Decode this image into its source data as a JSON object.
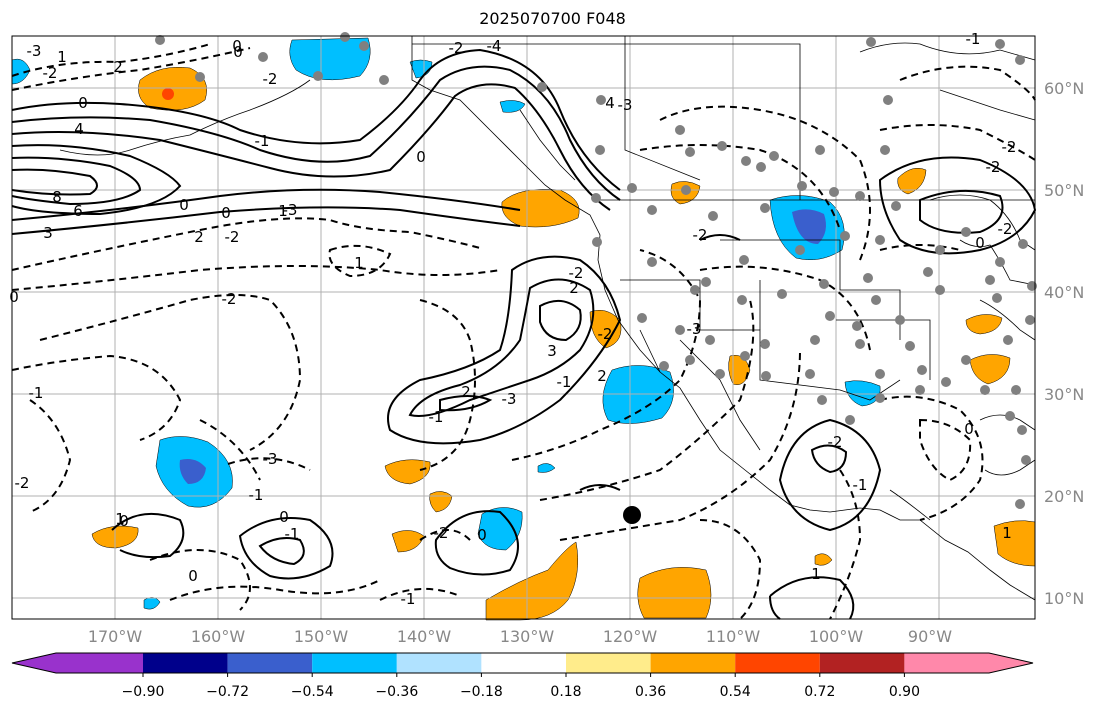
{
  "title": "2025070700 F048",
  "map": {
    "lat_labels": [
      "60°N",
      "50°N",
      "40°N",
      "30°N",
      "20°N",
      "10°N"
    ],
    "lon_labels": [
      "170°W",
      "160°W",
      "150°W",
      "140°W",
      "130°W",
      "120°W",
      "110°W",
      "100°W",
      "90°W"
    ],
    "contour_labels": [
      "-3",
      "-2",
      "2",
      "0",
      "-2",
      "0",
      "4",
      "8",
      "6",
      "3",
      "-2",
      "0",
      "2",
      "-3",
      "-1",
      "4",
      "-3",
      "-2",
      "-4",
      "0",
      "1",
      "-2",
      "1",
      "-2",
      "2",
      "-2",
      "-3",
      "-2",
      "3",
      "2",
      "-1",
      "-3",
      "-1",
      "2",
      "-2",
      "-2",
      "-2",
      "0",
      "-1",
      "-2",
      "-1",
      "0",
      "1",
      "1",
      "0",
      "0",
      "-1",
      "0",
      "-1",
      "0",
      "-2",
      "-3",
      "-2",
      "-1",
      "0",
      "0",
      "1",
      "0",
      "1",
      "-1"
    ]
  },
  "colorbar": {
    "tick_labels": [
      "−0.90",
      "−0.72",
      "−0.54",
      "−0.36",
      "−0.18",
      "0.18",
      "0.36",
      "0.54",
      "0.72",
      "0.90"
    ],
    "colors": [
      "#9932cc",
      "#00008b",
      "#3a5fcd",
      "#00bfff",
      "#b0e2ff",
      "#ffffff",
      "#ffec8b",
      "#ffa500",
      "#ff4500",
      "#b22222",
      "#ff88aa"
    ]
  }
}
